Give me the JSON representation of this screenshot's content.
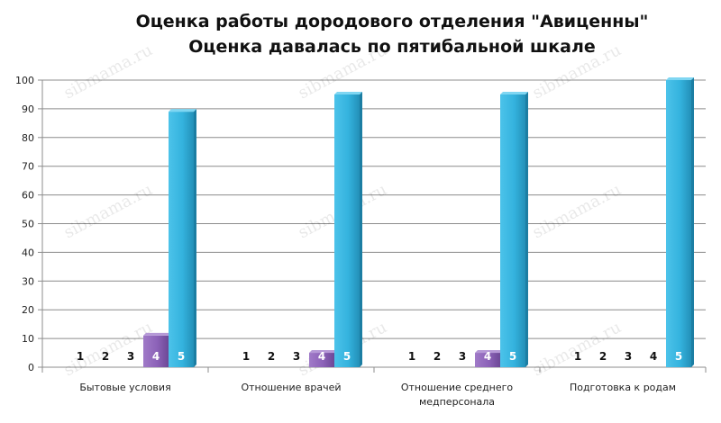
{
  "chart_data": {
    "type": "bar",
    "title": [
      "Оценка работы дородового отделения \"Авиценны\"",
      "Оценка давалась по пятибальной шкале"
    ],
    "categories": [
      "Бытовые условия",
      "Отношение врачей",
      "Отношение среднего медперсонала",
      "Подготовка к родам"
    ],
    "series": [
      {
        "name": "1",
        "values": [
          0,
          0,
          0,
          0
        ]
      },
      {
        "name": "2",
        "values": [
          0,
          0,
          0,
          0
        ]
      },
      {
        "name": "3",
        "values": [
          0,
          0,
          0,
          0
        ]
      },
      {
        "name": "4",
        "values": [
          11,
          5,
          5,
          0
        ]
      },
      {
        "name": "5",
        "values": [
          89,
          95,
          95,
          100
        ]
      }
    ],
    "ylim": [
      0,
      100
    ],
    "yticks": [
      0,
      10,
      20,
      30,
      40,
      50,
      60,
      70,
      80,
      90,
      100
    ],
    "grid": true,
    "legend": "none",
    "colors": {
      "bar4": "#8b5fb6",
      "bar5": "#33b2dd",
      "grid": "#8c8c8c",
      "axis": "#8c8c8c"
    },
    "watermark": "sibmama.ru"
  }
}
